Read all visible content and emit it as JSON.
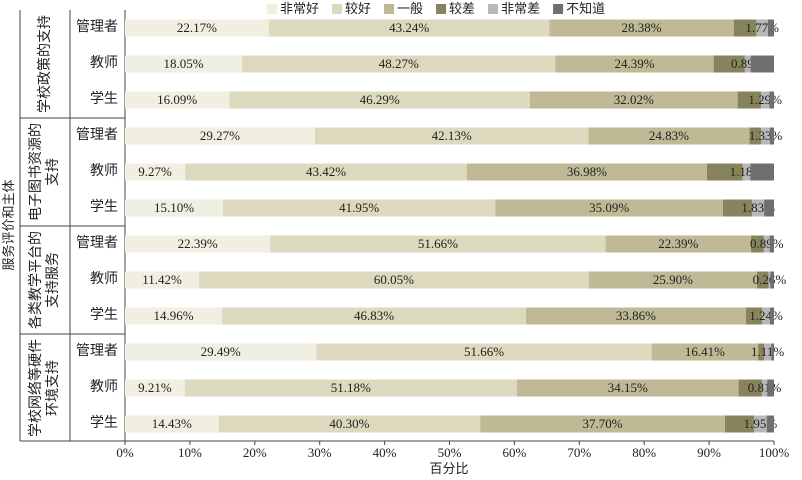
{
  "chart_data": {
    "type": "stacked-bar-horizontal",
    "y_label": "服务评价和主体",
    "x_label": "百分比",
    "groups": [
      {
        "name": "学校政策的支持",
        "categories": [
          "管理者",
          "教师",
          "学生"
        ]
      },
      {
        "name": "电子图书资源的支持",
        "categories": [
          "管理者",
          "教师",
          "学生"
        ]
      },
      {
        "name": "各类教学平台的支持服务",
        "categories": [
          "管理者",
          "教师",
          "学生"
        ]
      },
      {
        "name": "学校网络等硬件环境支持",
        "categories": [
          "管理者",
          "教师",
          "学生"
        ]
      }
    ],
    "series": [
      {
        "name": "非常好",
        "color": "#f1eee2",
        "values": [
          22.17,
          18.05,
          16.09,
          29.27,
          9.27,
          15.1,
          22.39,
          11.42,
          14.96,
          29.49,
          9.21,
          14.43
        ],
        "value_labels": [
          "22.17%",
          "18.05%",
          "16.09%",
          "29.27%",
          "9.27%",
          "15.10%",
          "22.39%",
          "11.42%",
          "14.96%",
          "29.49%",
          "9.21%",
          "14.43%"
        ]
      },
      {
        "name": "较好",
        "color": "#ddd9bf",
        "values": [
          43.24,
          48.27,
          46.29,
          42.13,
          43.42,
          41.95,
          51.66,
          60.05,
          46.83,
          51.66,
          51.18,
          40.3
        ],
        "value_labels": [
          "43.24%",
          "48.27%",
          "46.29%",
          "42.13%",
          "43.42%",
          "41.95%",
          "51.66%",
          "60.05%",
          "46.83%",
          "51.66%",
          "51.18%",
          "40.30%"
        ]
      },
      {
        "name": "一般",
        "color": "#bfba95",
        "values": [
          28.38,
          24.39,
          32.02,
          24.83,
          36.98,
          35.09,
          22.39,
          25.9,
          33.86,
          16.41,
          34.15,
          37.7
        ],
        "value_labels": [
          "28.38%",
          "24.39%",
          "32.02%",
          "24.83%",
          "36.98%",
          "35.09%",
          "22.39%",
          "25.90%",
          "33.86%",
          "16.41%",
          "34.15%",
          "37.70%"
        ]
      },
      {
        "name": "较差",
        "color": "#87845b",
        "values": [
          3.5,
          4.8,
          3.6,
          1.8,
          5.5,
          4.5,
          2.0,
          1.8,
          2.5,
          0.9,
          3.6,
          4.5
        ]
      },
      {
        "name": "非常差",
        "color": "#b8b8b8",
        "values": [
          1.77,
          0.89,
          1.29,
          1.33,
          1.18,
          1.83,
          0.89,
          0.26,
          1.24,
          1.11,
          0.81,
          1.95
        ],
        "value_labels": [
          "1.77%",
          "0.89%",
          "1.29%",
          "1.33%",
          "1.18%",
          "1.83%",
          "0.89%",
          "0.26%",
          "1.24%",
          "1.11%",
          "0.81%",
          "1.95%"
        ]
      },
      {
        "name": "不知道",
        "color": "#6f6f6f",
        "values": [
          0.94,
          3.6,
          0.71,
          0.64,
          3.65,
          1.53,
          0.67,
          0.57,
          0.61,
          0.43,
          1.05,
          1.12
        ]
      }
    ],
    "xlim": [
      0,
      100
    ],
    "xticks": [
      {
        "value": 0,
        "label": "0%"
      },
      {
        "value": 10,
        "label": "10%"
      },
      {
        "value": 20,
        "label": "20%"
      },
      {
        "value": 30,
        "label": "30%"
      },
      {
        "value": 40,
        "label": "40%"
      },
      {
        "value": 50,
        "label": "50%"
      },
      {
        "value": 60,
        "label": "60%"
      },
      {
        "value": 70,
        "label": "70%"
      },
      {
        "value": 80,
        "label": "80%"
      },
      {
        "value": 90,
        "label": "90%"
      },
      {
        "value": 100,
        "label": "100%"
      }
    ],
    "legend": "top"
  }
}
